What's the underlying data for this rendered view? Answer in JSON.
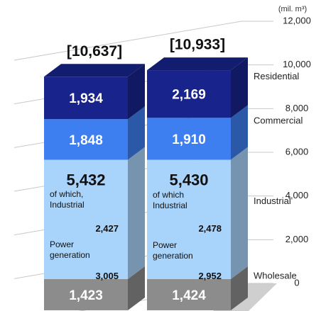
{
  "chart_data": {
    "type": "bar",
    "stacked": true,
    "unit_label": "(mil. m³)",
    "categories": [
      null,
      null
    ],
    "series": [
      {
        "name": "Wholesale",
        "color": "#8c8c8c",
        "values": [
          1423,
          1424
        ],
        "value_labels": [
          "1,423",
          "1,424"
        ]
      },
      {
        "name": "Industrial",
        "color": "#a8d3fa",
        "values": [
          5432,
          5430
        ],
        "value_labels": [
          "5,432",
          "5,430"
        ]
      },
      {
        "name": "Commercial",
        "color": "#3d7ff0",
        "values": [
          1848,
          1910
        ],
        "value_labels": [
          "1,848",
          "1,910"
        ]
      },
      {
        "name": "Residential",
        "color": "#18248c",
        "values": [
          1934,
          2169
        ],
        "value_labels": [
          "1,934",
          "2,169"
        ]
      }
    ],
    "totals": [
      10637,
      10933
    ],
    "total_labels": [
      "[10,637]",
      "[10,933]"
    ],
    "breakdown": [
      [
        {
          "text": "Power generation",
          "value": 3005,
          "label": "3,005"
        },
        {
          "text": "of which, Industrial",
          "value": 2427,
          "label": "2,427"
        }
      ],
      [
        {
          "text": "Power generation",
          "value": 2952,
          "label": "2,952"
        },
        {
          "text": "of which Industrial",
          "value": 2478,
          "label": "2,478"
        }
      ]
    ],
    "ylim": [
      0,
      12000
    ],
    "yticks": [
      {
        "value": 0,
        "label": "0"
      },
      {
        "value": 2000,
        "label": "2,000"
      },
      {
        "value": 4000,
        "label": "4,000"
      },
      {
        "value": 6000,
        "label": "6,000"
      },
      {
        "value": 8000,
        "label": "8,000"
      },
      {
        "value": 10000,
        "label": "10,000"
      },
      {
        "value": 12000,
        "label": "12,000"
      }
    ],
    "grid": true
  }
}
